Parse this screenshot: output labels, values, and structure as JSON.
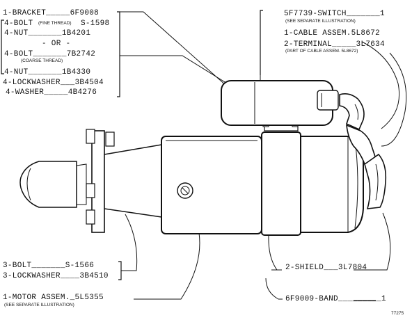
{
  "labels": {
    "bracket": "1-BRACKET_____6F9008",
    "bolt_fine": "4-BOLT",
    "bolt_fine_note": "(FINE THREAD)",
    "bolt_fine_part": "S-1598",
    "nut1": "4-NUT_______1B4201",
    "or": "- OR -",
    "bolt_coarse": "4-BOLT_______7B2742",
    "bolt_coarse_note": "(COARSE THREAD)",
    "nut2": "4-NUT_______1B4330",
    "lockwasher1": "4-LOCKWASHER___3B4504",
    "washer": "4-WASHER_____4B4276",
    "switch": "5F7739-SWITCH_______1",
    "switch_note": "(SEE SEPARATE ILLUSTRATION)",
    "cable": "1-CABLE ASSEM.5L8672",
    "terminal": "2-TERMINAL_____3L7634",
    "terminal_note": "(PART OF CABLE ASSEM. 5L8672)",
    "bolt3": "3-BOLT_______S-1566",
    "lockwasher3": "3-LOCKWASHER____3B4510",
    "shield": "2-SHIELD___3L7804",
    "motor": "1-MOTOR ASSEM._5L5355",
    "motor_note": "(SEE SEPARATE ILLUSTRATION)",
    "band": "6F9009-BAND_________1",
    "figure_no": "77275"
  }
}
